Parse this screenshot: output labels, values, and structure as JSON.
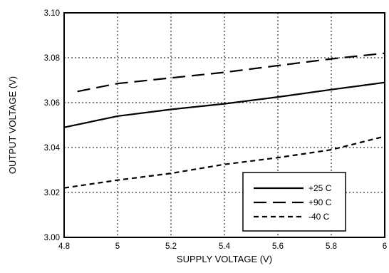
{
  "chart_data": {
    "type": "line",
    "xlabel": "SUPPLY VOLTAGE (V)",
    "ylabel": "OUTPUT VOLTAGE (V)",
    "xlim": [
      4.8,
      6
    ],
    "ylim": [
      3.0,
      3.1
    ],
    "x_ticks": [
      "4.8",
      "5",
      "5.2",
      "5.4",
      "5.6",
      "5.8",
      "6"
    ],
    "y_ticks": [
      "3.00",
      "3.02",
      "3.04",
      "3.06",
      "3.08",
      "3.10"
    ],
    "grid": true,
    "legend_position": "bottom-right",
    "series": [
      {
        "name": "+25 C",
        "style": "solid",
        "x": [
          4.8,
          5.0,
          5.2,
          5.4,
          5.6,
          5.8,
          6.0
        ],
        "y": [
          3.049,
          3.054,
          3.057,
          3.0595,
          3.0625,
          3.0658,
          3.069
        ]
      },
      {
        "name": "+90 C",
        "style": "long-dash",
        "x": [
          4.85,
          5.0,
          5.2,
          5.4,
          5.6,
          5.8,
          6.0
        ],
        "y": [
          3.065,
          3.0685,
          3.071,
          3.0735,
          3.0765,
          3.0795,
          3.082
        ]
      },
      {
        "name": "-40 C",
        "style": "short-dash",
        "x": [
          4.8,
          5.0,
          5.2,
          5.4,
          5.6,
          5.8,
          6.0
        ],
        "y": [
          3.022,
          3.0255,
          3.0285,
          3.0325,
          3.0355,
          3.039,
          3.045
        ]
      }
    ]
  }
}
